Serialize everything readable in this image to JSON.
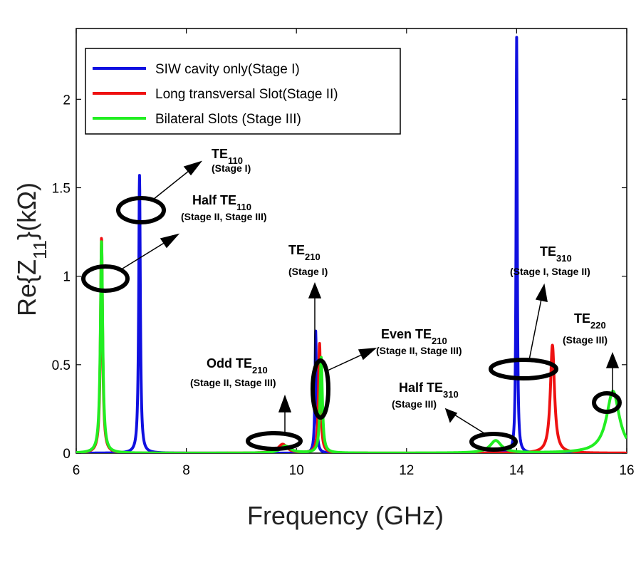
{
  "chart_data": {
    "type": "line",
    "title": "",
    "xlabel": "Frequency (GHz)",
    "ylabel_prefix": "Re{Z",
    "ylabel_sub": "11",
    "ylabel_suffix": "}(kΩ)",
    "xlim": [
      6,
      16
    ],
    "ylim": [
      0,
      2.4
    ],
    "xticks": [
      6,
      8,
      10,
      12,
      14,
      16
    ],
    "xtick_labels": [
      "6",
      "8",
      "10",
      "12",
      "14",
      "16"
    ],
    "yticks": [
      0,
      0.5,
      1,
      1.5,
      2
    ],
    "ytick_labels": [
      "0",
      "0.5",
      "1",
      "1.5",
      "2"
    ],
    "legend_position": "top-left",
    "series": [
      {
        "name": "SIW cavity only(Stage I)",
        "color": "#1010e0",
        "peaks": [
          {
            "f0": 7.15,
            "h": 1.57,
            "w": 0.035
          },
          {
            "f0": 10.35,
            "h": 0.69,
            "w": 0.03
          },
          {
            "f0": 14.0,
            "h": 2.35,
            "w": 0.025
          }
        ]
      },
      {
        "name": "Long transversal Slot(Stage II)",
        "color": "#ee1111",
        "peaks": [
          {
            "f0": 6.46,
            "h": 1.22,
            "w": 0.045
          },
          {
            "f0": 9.75,
            "h": 0.05,
            "w": 0.2
          },
          {
            "f0": 10.42,
            "h": 0.62,
            "w": 0.045
          },
          {
            "f0": 14.65,
            "h": 0.61,
            "w": 0.09
          }
        ]
      },
      {
        "name": "Bilateral Slots (Stage III)",
        "color": "#22ee22",
        "peaks": [
          {
            "f0": 6.46,
            "h": 1.2,
            "w": 0.05
          },
          {
            "f0": 9.8,
            "h": 0.04,
            "w": 0.22
          },
          {
            "f0": 10.45,
            "h": 0.54,
            "w": 0.05
          },
          {
            "f0": 13.62,
            "h": 0.07,
            "w": 0.25
          },
          {
            "f0": 15.75,
            "h": 0.35,
            "w": 0.28
          }
        ]
      }
    ],
    "annotations": [
      {
        "id": "te110",
        "mode": "TE",
        "sub": "110",
        "stage": "(Stage I)"
      },
      {
        "id": "half-te110",
        "mode": "Half TE",
        "sub": "110",
        "stage": "(Stage II, Stage III)"
      },
      {
        "id": "te210",
        "mode": "TE",
        "sub": "210",
        "stage": "(Stage I)"
      },
      {
        "id": "odd-te210",
        "mode": "Odd TE",
        "sub": "210",
        "stage": "(Stage II, Stage III)"
      },
      {
        "id": "even-te210",
        "mode": "Even TE",
        "sub": "210",
        "stage": "(Stage II, Stage III)"
      },
      {
        "id": "half-te310",
        "mode": "Half TE",
        "sub": "310",
        "stage": "(Stage III)"
      },
      {
        "id": "te310",
        "mode": "TE",
        "sub": "310",
        "stage": "(Stage I, Stage II)"
      },
      {
        "id": "te220",
        "mode": "TE",
        "sub": "220",
        "stage": "(Stage III)"
      }
    ]
  }
}
